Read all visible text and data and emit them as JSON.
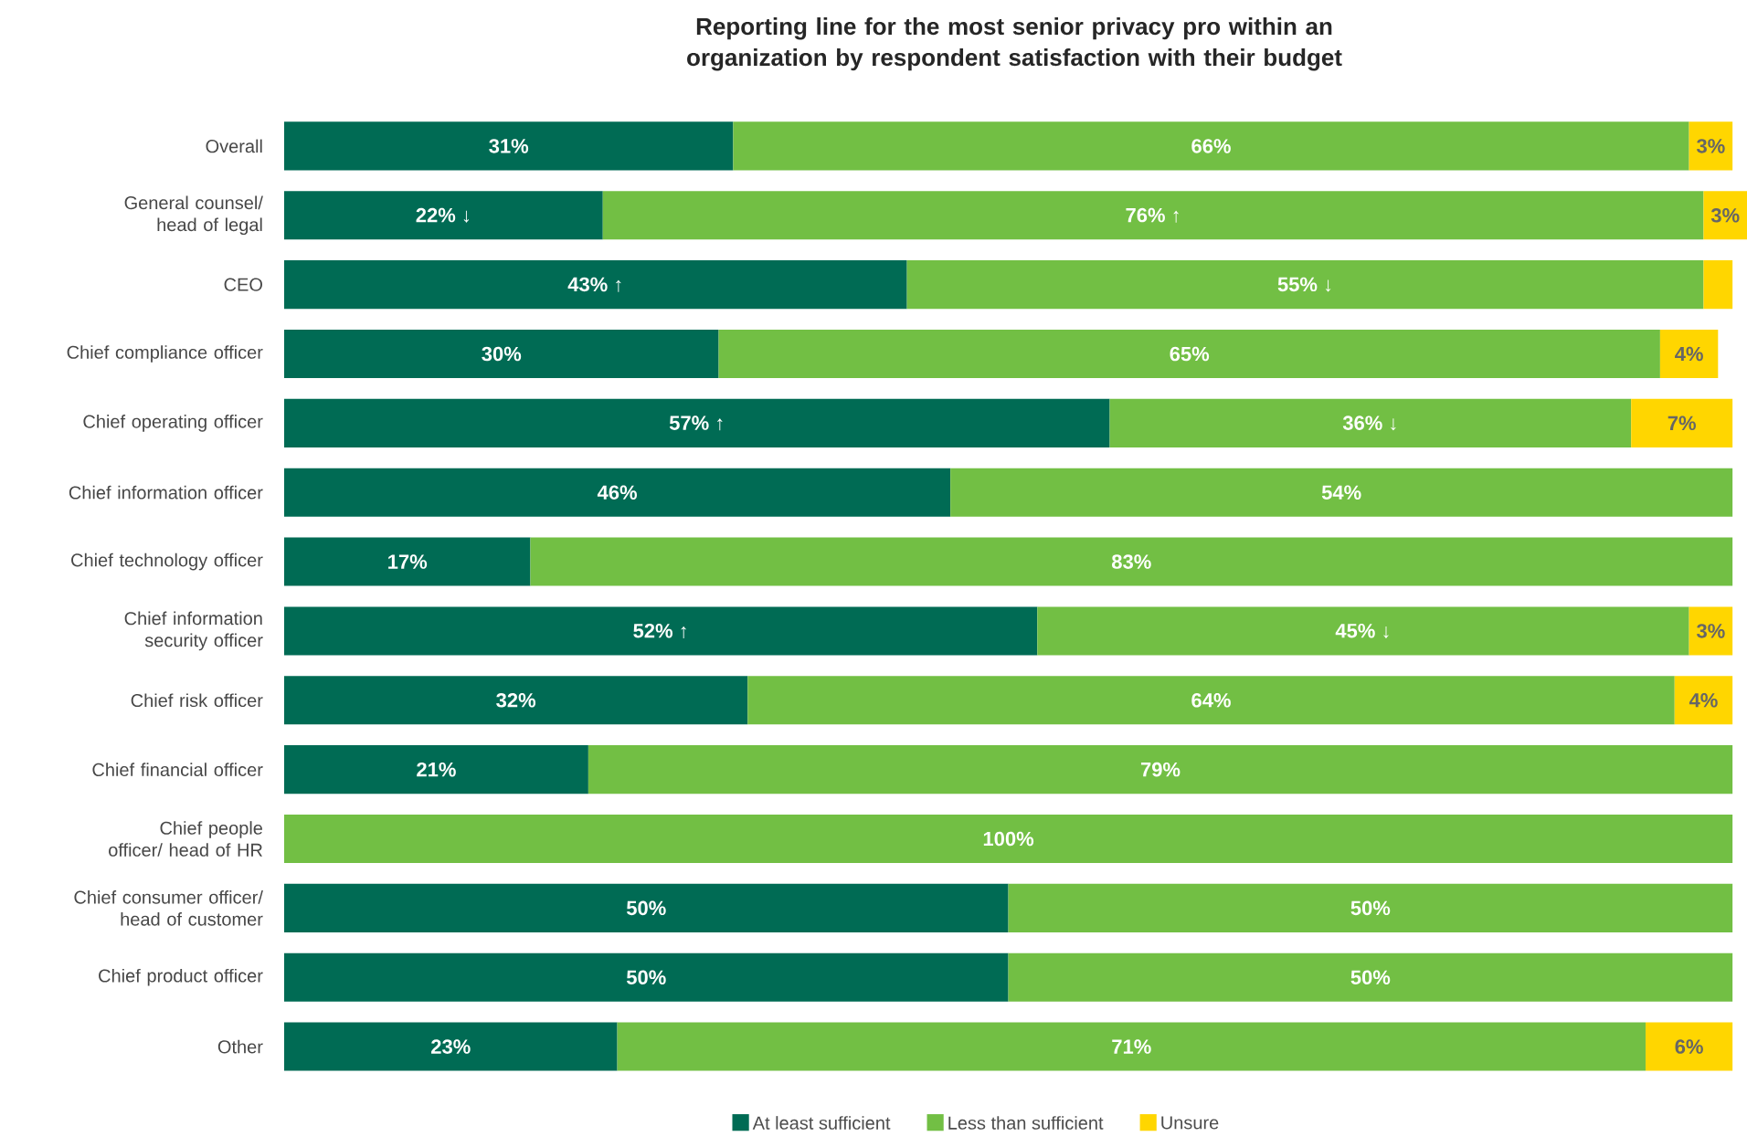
{
  "chart_data": {
    "type": "bar",
    "orientation": "horizontal",
    "stacked": true,
    "legend": "bottom",
    "title": "Reporting line for the most senior privacy pro within an organization by respondent satisfaction with their budget",
    "categories": [
      "Overall",
      "General counsel/ head of legal",
      "CEO",
      "Chief compliance officer",
      "Chief operating officer",
      "Chief information officer",
      "Chief technology officer",
      "Chief information security officer",
      "Chief risk officer",
      "Chief financial officer",
      "Chief people officer/ head of HR",
      "Chief consumer officer/ head of customer",
      "Chief product officer",
      "Other"
    ],
    "series": [
      {
        "name": "At least sufficient",
        "color": "#006b54",
        "values": [
          31,
          22,
          43,
          30,
          57,
          46,
          17,
          52,
          32,
          21,
          null,
          50,
          50,
          23
        ],
        "value_labels": [
          "31%",
          "22% ↓",
          "43% ↑",
          "30%",
          "57% ↑",
          "46%",
          "17%",
          "52% ↑",
          "32%",
          "21%",
          null,
          "50%",
          "50%",
          "23%"
        ]
      },
      {
        "name": "Less than sufficient",
        "color": "#72bf44",
        "values": [
          66,
          76,
          55,
          65,
          36,
          54,
          83,
          45,
          64,
          79,
          100,
          50,
          50,
          71
        ],
        "value_labels": [
          "66%",
          "76% ↑",
          "55% ↓",
          "65%",
          "36% ↓",
          "54%",
          "83%",
          "45% ↓",
          "64%",
          "79%",
          "100%",
          "50%",
          "50%",
          "71%"
        ]
      },
      {
        "name": "Unsure",
        "color": "#ffd600",
        "values": [
          3,
          3,
          2,
          4,
          7,
          null,
          null,
          3,
          4,
          null,
          null,
          null,
          null,
          6
        ],
        "value_labels": [
          "3%",
          "3%",
          null,
          "4%",
          "7%",
          null,
          null,
          "3%",
          "4%",
          null,
          null,
          null,
          null,
          "6%"
        ]
      }
    ]
  }
}
